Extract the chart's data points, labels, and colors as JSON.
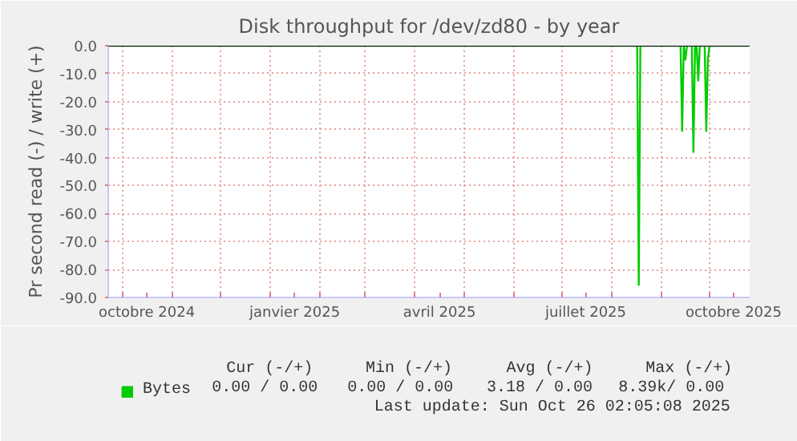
{
  "chart_data": {
    "type": "line",
    "title": "Disk throughput for /dev/zd80 - by year",
    "ylabel": "Pr second read (-) / write (+)",
    "xlim": [
      "2024-09-22",
      "2025-10-26"
    ],
    "ylim": [
      -90,
      0
    ],
    "yticks": [
      {
        "value": 0,
        "label": "0.0"
      },
      {
        "value": -10,
        "label": "-10.0"
      },
      {
        "value": -20,
        "label": "-20.0"
      },
      {
        "value": -30,
        "label": "-30.0"
      },
      {
        "value": -40,
        "label": "-40.0"
      },
      {
        "value": -50,
        "label": "-50.0"
      },
      {
        "value": -60,
        "label": "-60.0"
      },
      {
        "value": -70,
        "label": "-70.0"
      },
      {
        "value": -80,
        "label": "-80.0"
      },
      {
        "value": -90,
        "label": "-90.0"
      }
    ],
    "xticks": [
      {
        "value": "2024-10-01",
        "label": null
      },
      {
        "value": "2024-10-16",
        "label": "octobre 2024"
      },
      {
        "value": "2024-11-01",
        "label": null
      },
      {
        "value": "2024-12-01",
        "label": null
      },
      {
        "value": "2025-01-01",
        "label": null
      },
      {
        "value": "2025-01-16",
        "label": "janvier 2025"
      },
      {
        "value": "2025-02-01",
        "label": null
      },
      {
        "value": "2025-03-01",
        "label": null
      },
      {
        "value": "2025-04-01",
        "label": null
      },
      {
        "value": "2025-04-16",
        "label": "avril 2025"
      },
      {
        "value": "2025-05-01",
        "label": null
      },
      {
        "value": "2025-06-01",
        "label": null
      },
      {
        "value": "2025-07-01",
        "label": null
      },
      {
        "value": "2025-07-16",
        "label": "juillet 2025"
      },
      {
        "value": "2025-08-01",
        "label": null
      },
      {
        "value": "2025-09-01",
        "label": null
      },
      {
        "value": "2025-10-01",
        "label": null
      },
      {
        "value": "2025-10-16",
        "label": "octobre 2025"
      }
    ],
    "grid": true,
    "legend": "bottom left",
    "marker": "none",
    "line_style": "solid",
    "series": [
      {
        "name": "Bytes",
        "color": "#00cc00",
        "x": [
          "2024-09-23",
          "2025-08-17",
          "2025-08-18",
          "2025-08-19",
          "2025-09-13",
          "2025-09-14",
          "2025-09-15",
          "2025-09-16",
          "2025-09-17",
          "2025-09-20",
          "2025-09-21",
          "2025-09-22",
          "2025-09-23",
          "2025-09-24",
          "2025-09-25",
          "2025-09-28",
          "2025-09-29",
          "2025-09-30",
          "2025-10-01",
          "2025-10-25"
        ],
        "values": [
          0,
          0,
          -85.5,
          0,
          0,
          -30.5,
          0,
          -5,
          0,
          0,
          -38,
          0,
          0,
          -12.5,
          0,
          0,
          -30.5,
          -5,
          0,
          0
        ]
      }
    ],
    "annotations": [
      "Cur (-/+)",
      "Min (-/+)",
      "Avg (-/+)",
      "Max (-/+)",
      "0.00 /  0.00",
      "0.00 /  0.00",
      "3.18 /  0.00",
      "8.39k/  0.00",
      "Last update: Sun Oct 26 02:05:08 2025"
    ]
  }
}
